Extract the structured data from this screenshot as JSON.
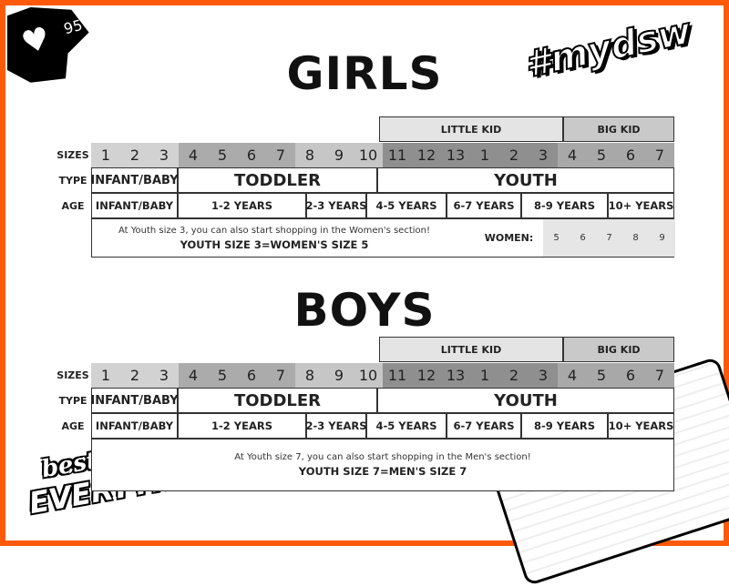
{
  "decor": {
    "likes": "95",
    "hashtag": "#mydsw",
    "logo_line1": "best of",
    "logo_line2": "EVERYTHING"
  },
  "colors": {
    "border": "#ff5a0a",
    "little_kid": "#e4e4e4",
    "big_kid": "#c9c9c9",
    "size_1_3": "#d2d2d2",
    "size_4_7": "#ababab",
    "size_8_10": "#c6c6c6",
    "size_youth": "#8f8f8f",
    "size_big": "#a8a8a8",
    "women_sizes": "#e6e6e6"
  },
  "row_labels": {
    "sizes": "SIZES",
    "type": "TYPE",
    "age": "AGE"
  },
  "groups": [
    "LITTLE KID",
    "BIG KID"
  ],
  "sizes": [
    "1",
    "2",
    "3",
    "4",
    "5",
    "6",
    "7",
    "8",
    "9",
    "10",
    "11",
    "12",
    "13",
    "1",
    "2",
    "3",
    "4",
    "5",
    "6",
    "7"
  ],
  "types": [
    "INFANT/BABY",
    "TODDLER",
    "YOUTH"
  ],
  "ages": [
    "INFANT/BABY",
    "1-2 YEARS",
    "2-3 YEARS",
    "4-5 YEARS",
    "6-7 YEARS",
    "8-9 YEARS",
    "10+ YEARS"
  ],
  "girls": {
    "title": "GIRLS",
    "note": "At Youth size 3, you can also start shopping in the Women's section!",
    "note_bold": "YOUTH SIZE 3=WOMEN'S SIZE 5",
    "women_label": "WOMEN:",
    "women_sizes": [
      "5",
      "6",
      "7",
      "8",
      "9"
    ]
  },
  "boys": {
    "title": "BOYS",
    "note": "At Youth size 7, you can also start shopping in the Men's section!",
    "note_bold": "YOUTH SIZE 7=MEN'S SIZE 7"
  }
}
